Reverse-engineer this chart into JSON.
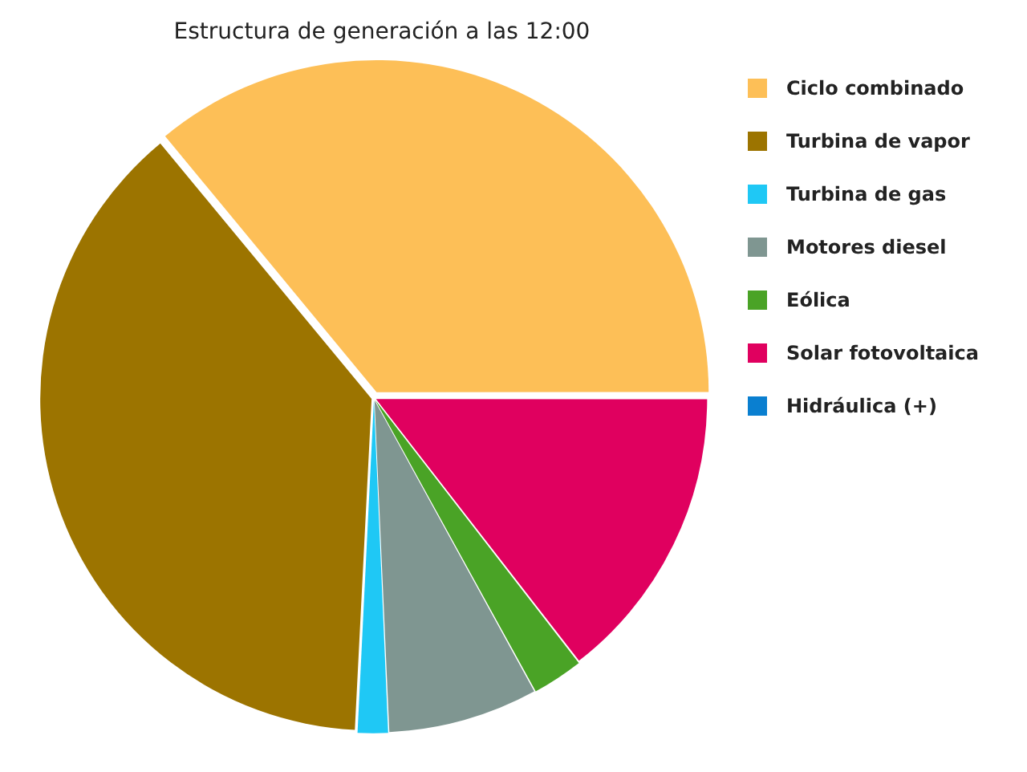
{
  "chart_data": {
    "type": "pie",
    "title": "Estructura de generación a las 12:00",
    "categories": [
      "Ciclo combinado",
      "Turbina de vapor",
      "Turbina de gas",
      "Motores diesel",
      "Eólica",
      "Solar fotovoltaica",
      "Hidráulica (+)"
    ],
    "values": [
      36,
      38.2,
      1.5,
      7.3,
      2.5,
      14.5,
      0
    ],
    "colors": [
      "#fdbf57",
      "#9c7400",
      "#1fc8f5",
      "#7f9691",
      "#4aa326",
      "#e0005f",
      "#0a7fd0"
    ],
    "legend": "right"
  }
}
